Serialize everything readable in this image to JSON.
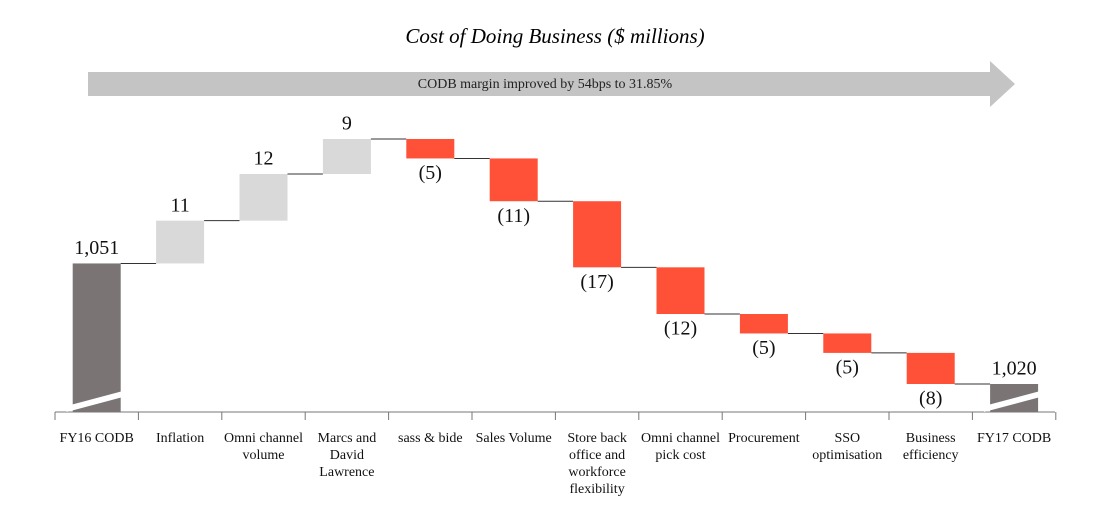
{
  "chart_data": {
    "type": "waterfall",
    "title": "Cost of Doing Business ($ millions)",
    "annotation": "CODB margin improved by 54bps to 31.85%",
    "categories": [
      "FY16 CODB",
      "Inflation",
      "Omni channel volume",
      "Marcs and David Lawrence",
      "sass & bide",
      "Sales Volume",
      "Store back office and workforce flexibility",
      "Omni channel pick cost",
      "Procurement",
      "SSO optimisation",
      "Business efficiency",
      "FY17 CODB"
    ],
    "values": [
      1051,
      11,
      12,
      9,
      -5,
      -11,
      -17,
      -12,
      -5,
      -5,
      -8,
      1020
    ],
    "value_labels": [
      "1,051",
      "11",
      "12",
      "9",
      "(5)",
      "(11)",
      "(17)",
      "(12)",
      "(5)",
      "(5)",
      "(8)",
      "1,020"
    ],
    "measure": [
      "total",
      "relative",
      "relative",
      "relative",
      "relative",
      "relative",
      "relative",
      "relative",
      "relative",
      "relative",
      "relative",
      "total"
    ],
    "colors": {
      "total": "#7a7574",
      "increase": "#d9d9d9",
      "decrease": "#ff5038"
    }
  }
}
